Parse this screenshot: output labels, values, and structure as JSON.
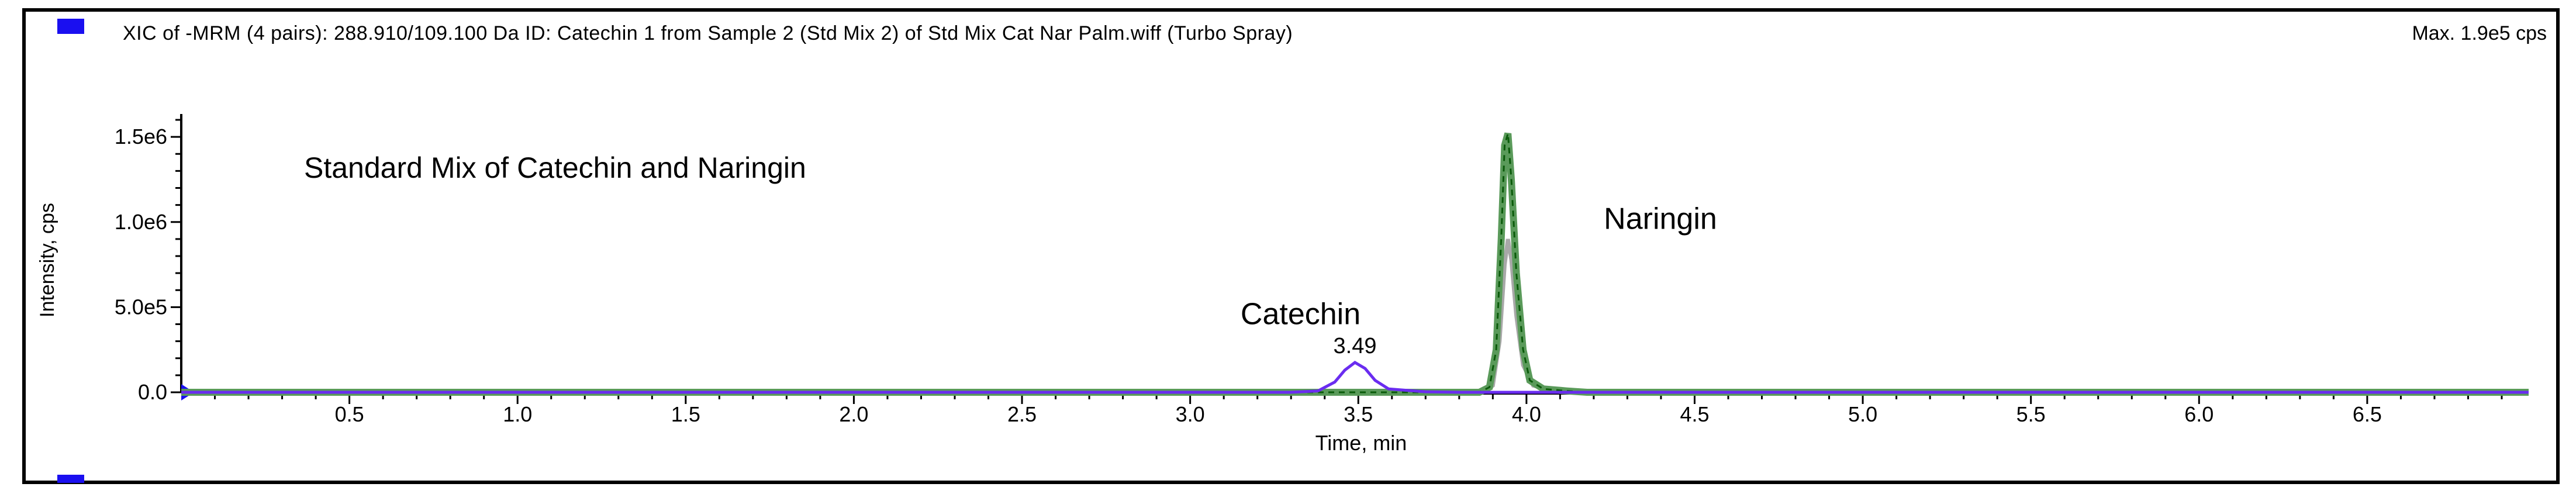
{
  "header": {
    "title": "XIC of -MRM (4 pairs): 288.910/109.100 Da ID: Catechin 1 from Sample 2 (Std Mix 2) of Std Mix Cat Nar Palm.wiff (Turbo Spray)",
    "max_intensity": "Max. 1.9e5 cps"
  },
  "chart_data": {
    "type": "line",
    "title": "Standard Mix of Catechin and Naringin",
    "xlabel": "Time, min",
    "ylabel": "Intensity, cps",
    "xlim": [
      0.0,
      6.98
    ],
    "ylim": [
      0,
      1600000.0
    ],
    "x_ticks": [
      0.5,
      1.0,
      1.5,
      2.0,
      2.5,
      3.0,
      3.5,
      4.0,
      4.5,
      5.0,
      5.5,
      6.0,
      6.5
    ],
    "x_tick_labels": [
      "0.5",
      "1.0",
      "1.5",
      "2.0",
      "2.5",
      "3.0",
      "3.5",
      "4.0",
      "4.5",
      "5.0",
      "5.5",
      "6.0",
      "6.5"
    ],
    "y_ticks": [
      0,
      500000.0,
      1000000.0,
      1500000.0
    ],
    "y_tick_labels": [
      "0.0",
      "5.0e5",
      "1.0e6",
      "1.5e6"
    ],
    "grid": false,
    "colors": {
      "catechin": "#6a2cf0",
      "naringin_primary": "#5a9a5a",
      "naringin_secondary": "#a8a8a8",
      "baseline": "#1a0ff0",
      "naringin_dash": "#0a5a0a"
    },
    "series": [
      {
        "x": [
          0.0,
          3.3,
          3.38,
          3.43,
          3.46,
          3.49,
          3.52,
          3.55,
          3.59,
          3.64,
          3.7,
          3.8,
          6.98
        ],
        "y": [
          0,
          0,
          8000,
          60000,
          130000,
          175000,
          140000,
          70000,
          20000,
          12000,
          3000,
          0,
          0
        ]
      },
      {
        "x": [
          0.0,
          3.86,
          3.89,
          3.91,
          3.925,
          3.935,
          3.945,
          3.955,
          3.97,
          3.99,
          4.01,
          4.05,
          4.12,
          4.18,
          6.98
        ],
        "y": [
          0,
          0,
          30000,
          250000,
          900000,
          1450000,
          1520000,
          1250000,
          700000,
          250000,
          70000,
          20000,
          8000,
          0,
          0
        ]
      },
      {
        "x": [
          0.0,
          3.87,
          3.9,
          3.92,
          3.935,
          3.945,
          3.955,
          3.97,
          3.99,
          4.02,
          4.08,
          4.16,
          6.98
        ],
        "y": [
          0,
          0,
          40000,
          300000,
          750000,
          900000,
          780000,
          450000,
          160000,
          40000,
          10000,
          0,
          0
        ]
      }
    ],
    "annotations": [
      {
        "text": "Catechin",
        "x": 3.15,
        "y": 400000
      },
      {
        "text": "3.49",
        "x": 3.49,
        "y": 230000
      },
      {
        "text": "Naringin",
        "x": 4.23,
        "y": 960000
      }
    ]
  }
}
